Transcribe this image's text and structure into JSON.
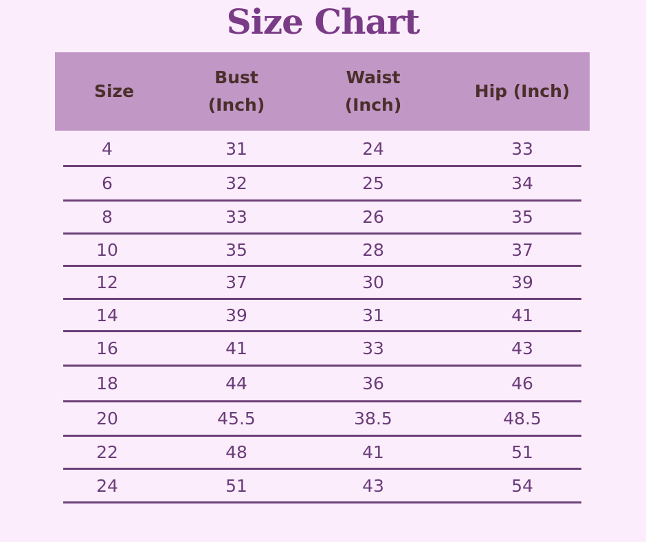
{
  "title": "Size Chart",
  "colors": {
    "background": "#fcedfc",
    "header": "#c197c6",
    "header_text": "#4a2f2a",
    "body_text": "#6a3d7a",
    "title": "#7a3b86",
    "rule": "#6b3f78"
  },
  "columns": [
    "Size",
    "Bust\n(Inch)",
    "Waist\n(Inch)",
    "Hip (Inch)"
  ],
  "rows": [
    [
      "4",
      "31",
      "24",
      "33"
    ],
    [
      "6",
      "32",
      "25",
      "34"
    ],
    [
      "8",
      "33",
      "26",
      "35"
    ],
    [
      "10",
      "35",
      "28",
      "37"
    ],
    [
      "12",
      "37",
      "30",
      "39"
    ],
    [
      "14",
      "39",
      "31",
      "41"
    ],
    [
      "16",
      "41",
      "33",
      "43"
    ],
    [
      "18",
      "44",
      "36",
      "46"
    ],
    [
      "20",
      "45.5",
      "38.5",
      "48.5"
    ],
    [
      "22",
      "48",
      "41",
      "51"
    ],
    [
      "24",
      "51",
      "43",
      "54"
    ]
  ]
}
